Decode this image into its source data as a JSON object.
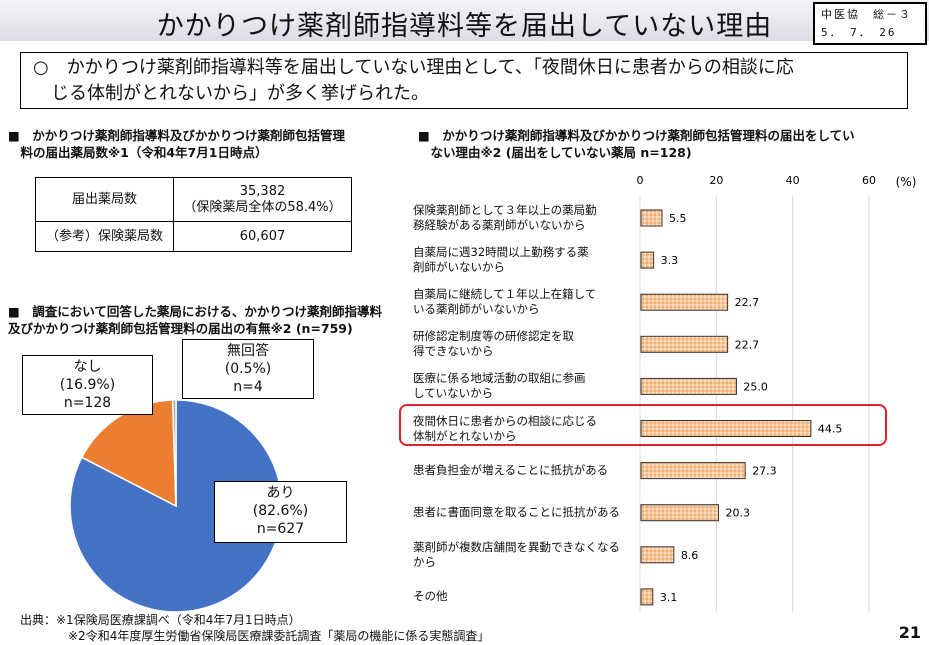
{
  "header": {
    "title": "かかりつけ薬剤師指導料等を届出していない理由",
    "stamp_line1": "中医協　総－３",
    "stamp_line2": "5．　7．　26"
  },
  "summary": {
    "line1": "○　かかりつけ薬剤師指導料等を届出していない理由として、「夜間休日に患者からの相談に応",
    "line2": "　じる体制がとれないから」が多く挙げられた。"
  },
  "table_section": {
    "heading1": "■　かかりつけ薬剤師指導料及びかかりつけ薬剤師包括管理",
    "heading2": "　料の届出薬局数※1（令和4年7月1日時点）",
    "rows": [
      {
        "label": "届出薬局数",
        "value": "35,382",
        "sub": "（保険薬局全体の58.4%）"
      },
      {
        "label": "（参考）保険薬局数",
        "value": "60,607",
        "sub": ""
      }
    ]
  },
  "chart_data": [
    {
      "type": "pie",
      "title": "■　調査において回答した薬局における、かかりつけ薬剤師指導料",
      "title2": "及びかかりつけ薬剤師包括管理料の届出の有無※2 (n=759)",
      "slices": [
        {
          "name": "あり",
          "percent": 82.6,
          "pct_label": "(82.6%)",
          "n_label": "n=627",
          "color": "#4472c4"
        },
        {
          "name": "なし",
          "percent": 16.9,
          "pct_label": "(16.9%)",
          "n_label": "n=128",
          "color": "#ed7d31"
        },
        {
          "name": "無回答",
          "percent": 0.5,
          "pct_label": "(0.5%)",
          "n_label": "n=4",
          "color": "#a5a5a5"
        }
      ]
    },
    {
      "type": "bar",
      "title": "■　かかりつけ薬剤師指導料及びかかりつけ薬剤師包括管理料の届出をしてい",
      "title2": "　ない理由※2 (届出をしていない薬局 n=128)",
      "xlabel": "(%)",
      "xlim": [
        0,
        60
      ],
      "ticks": [
        "0",
        "20",
        "40",
        "60"
      ],
      "tick_values": [
        0,
        20,
        40,
        60
      ],
      "grid": true,
      "bar_color": "#f8c79a",
      "categories": [
        [
          "保険薬剤師として３年以上の薬局勤",
          "務経験がある薬剤師がいないから"
        ],
        [
          "自薬局に週32時間以上勤務する薬",
          "剤師がいないから"
        ],
        [
          "自薬局に継続して１年以上在籍して",
          "いる薬剤師がいないから"
        ],
        [
          "研修認定制度等の研修認定を取",
          "得できないから"
        ],
        [
          "医療に係る地域活動の取組に参画",
          "していないから"
        ],
        [
          "夜間休日に患者からの相談に応じる",
          "体制がとれないから"
        ],
        [
          "患者負担金が増えることに抵抗がある",
          ""
        ],
        [
          "患者に書面同意を取ることに抵抗がある",
          ""
        ],
        [
          "薬剤師が複数店舗間を異動できなくなる",
          "から"
        ],
        [
          "その他",
          ""
        ]
      ],
      "values": [
        5.5,
        3.3,
        22.7,
        22.7,
        25.0,
        44.5,
        27.3,
        20.3,
        8.6,
        3.1
      ],
      "value_labels": [
        "5.5",
        "3.3",
        "22.7",
        "22.7",
        "25.0",
        "44.5",
        "27.3",
        "20.3",
        "8.6",
        "3.1"
      ],
      "highlight_index": 5
    }
  ],
  "footer": {
    "line1": "出典：※1保険局医療課調べ（令和4年7月1日時点）",
    "line2": "　　　　※2令和4年度厚生労働省保険局医療課委託調査「薬局の機能に係る実態調査」",
    "page": "21"
  }
}
